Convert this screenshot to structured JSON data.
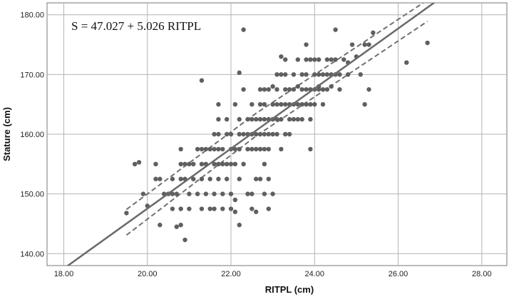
{
  "chart_data": {
    "type": "scatter",
    "title": "",
    "annotation": "S = 47.027 + 5.026 RITPL",
    "xlabel": "RITPL  (cm)",
    "ylabel": "Stature  (cm)",
    "xlim": [
      17.6,
      28.6
    ],
    "ylim": [
      138.0,
      182.0
    ],
    "x_ticks": [
      "18.00",
      "20.00",
      "22.00",
      "24.00",
      "26.00",
      "28.00"
    ],
    "y_ticks": [
      "140.00",
      "150.00",
      "160.00",
      "170.00",
      "180.00"
    ],
    "grid": true,
    "regression": {
      "intercept": 47.027,
      "slope": 5.026,
      "x_range": [
        17.6,
        26.9
      ]
    },
    "confidence_band": {
      "upper": [
        [
          19.5,
          147.4
        ],
        [
          22.6,
          163.5
        ],
        [
          26.6,
          182.0
        ]
      ],
      "lower": [
        [
          19.5,
          143.1
        ],
        [
          22.6,
          159.7
        ],
        [
          26.7,
          178.9
        ]
      ]
    },
    "points": [
      [
        19.5,
        146.8
      ],
      [
        19.7,
        155.0
      ],
      [
        19.8,
        155.3
      ],
      [
        19.9,
        150.0
      ],
      [
        20.0,
        148.0
      ],
      [
        20.2,
        155.0
      ],
      [
        20.2,
        152.5
      ],
      [
        20.3,
        152.5
      ],
      [
        20.3,
        144.8
      ],
      [
        20.4,
        150.0
      ],
      [
        20.5,
        150.0
      ],
      [
        20.6,
        152.5
      ],
      [
        20.6,
        150.0
      ],
      [
        20.6,
        147.5
      ],
      [
        20.7,
        150.0
      ],
      [
        20.7,
        144.5
      ],
      [
        20.8,
        157.5
      ],
      [
        20.8,
        155.0
      ],
      [
        20.8,
        152.5
      ],
      [
        20.8,
        147.5
      ],
      [
        20.8,
        144.8
      ],
      [
        20.9,
        155.0
      ],
      [
        20.9,
        152.5
      ],
      [
        20.9,
        142.3
      ],
      [
        21.0,
        155.0
      ],
      [
        21.0,
        150.0
      ],
      [
        21.0,
        147.5
      ],
      [
        21.1,
        155.0
      ],
      [
        21.1,
        152.5
      ],
      [
        21.2,
        157.5
      ],
      [
        21.2,
        150.0
      ],
      [
        21.3,
        157.5
      ],
      [
        21.3,
        155.0
      ],
      [
        21.3,
        152.5
      ],
      [
        21.3,
        147.5
      ],
      [
        21.3,
        169.0
      ],
      [
        21.4,
        157.5
      ],
      [
        21.4,
        155.0
      ],
      [
        21.4,
        150.0
      ],
      [
        21.5,
        157.5
      ],
      [
        21.5,
        152.5
      ],
      [
        21.5,
        147.5
      ],
      [
        21.6,
        160.0
      ],
      [
        21.6,
        157.5
      ],
      [
        21.6,
        155.0
      ],
      [
        21.6,
        150.0
      ],
      [
        21.6,
        147.5
      ],
      [
        21.7,
        160.0
      ],
      [
        21.7,
        157.5
      ],
      [
        21.7,
        155.0
      ],
      [
        21.7,
        152.5
      ],
      [
        21.7,
        165.0
      ],
      [
        21.7,
        162.5
      ],
      [
        21.8,
        157.5
      ],
      [
        21.8,
        155.0
      ],
      [
        21.8,
        150.0
      ],
      [
        21.8,
        147.5
      ],
      [
        21.9,
        160.0
      ],
      [
        21.9,
        155.0
      ],
      [
        21.9,
        152.5
      ],
      [
        21.9,
        162.5
      ],
      [
        22.0,
        157.5
      ],
      [
        22.0,
        155.0
      ],
      [
        22.0,
        150.0
      ],
      [
        22.0,
        147.5
      ],
      [
        22.0,
        160.0
      ],
      [
        22.1,
        157.5
      ],
      [
        22.1,
        155.0
      ],
      [
        22.1,
        149.0
      ],
      [
        22.1,
        147.0
      ],
      [
        22.1,
        165.0
      ],
      [
        22.2,
        162.5
      ],
      [
        22.2,
        170.3
      ],
      [
        22.2,
        160.0
      ],
      [
        22.2,
        157.5
      ],
      [
        22.2,
        152.5
      ],
      [
        22.2,
        144.8
      ],
      [
        22.3,
        167.5
      ],
      [
        22.3,
        160.0
      ],
      [
        22.3,
        177.5
      ],
      [
        22.3,
        155.0
      ],
      [
        22.4,
        162.5
      ],
      [
        22.4,
        160.0
      ],
      [
        22.4,
        157.5
      ],
      [
        22.4,
        150.0
      ],
      [
        22.5,
        165.0
      ],
      [
        22.5,
        162.5
      ],
      [
        22.5,
        160.0
      ],
      [
        22.5,
        157.5
      ],
      [
        22.5,
        150.0
      ],
      [
        22.5,
        147.5
      ],
      [
        22.6,
        162.5
      ],
      [
        22.6,
        160.0
      ],
      [
        22.6,
        157.5
      ],
      [
        22.6,
        152.5
      ],
      [
        22.6,
        147.0
      ],
      [
        22.7,
        167.5
      ],
      [
        22.7,
        165.0
      ],
      [
        22.7,
        162.5
      ],
      [
        22.7,
        160.0
      ],
      [
        22.7,
        157.5
      ],
      [
        22.7,
        152.5
      ],
      [
        22.8,
        167.5
      ],
      [
        22.8,
        165.0
      ],
      [
        22.8,
        162.5
      ],
      [
        22.8,
        160.0
      ],
      [
        22.8,
        157.5
      ],
      [
        22.8,
        155.0
      ],
      [
        22.8,
        150.0
      ],
      [
        22.9,
        167.5
      ],
      [
        22.9,
        162.5
      ],
      [
        22.9,
        160.0
      ],
      [
        22.9,
        157.5
      ],
      [
        22.9,
        152.5
      ],
      [
        22.9,
        147.5
      ],
      [
        23.0,
        168.0
      ],
      [
        23.0,
        165.0
      ],
      [
        23.0,
        162.5
      ],
      [
        23.0,
        160.0
      ],
      [
        23.0,
        150.0
      ],
      [
        23.1,
        170.0
      ],
      [
        23.1,
        167.5
      ],
      [
        23.1,
        165.0
      ],
      [
        23.1,
        162.5
      ],
      [
        23.1,
        160.0
      ],
      [
        23.2,
        173.0
      ],
      [
        23.2,
        170.0
      ],
      [
        23.2,
        165.0
      ],
      [
        23.2,
        162.5
      ],
      [
        23.2,
        157.5
      ],
      [
        23.3,
        172.5
      ],
      [
        23.3,
        170.0
      ],
      [
        23.3,
        167.5
      ],
      [
        23.3,
        165.0
      ],
      [
        23.3,
        160.0
      ],
      [
        23.4,
        167.5
      ],
      [
        23.4,
        165.0
      ],
      [
        23.4,
        162.5
      ],
      [
        23.4,
        160.0
      ],
      [
        23.5,
        170.0
      ],
      [
        23.5,
        167.5
      ],
      [
        23.5,
        165.0
      ],
      [
        23.5,
        162.5
      ],
      [
        23.6,
        172.5
      ],
      [
        23.6,
        168.0
      ],
      [
        23.6,
        165.0
      ],
      [
        23.6,
        162.5
      ],
      [
        23.7,
        170.0
      ],
      [
        23.7,
        167.5
      ],
      [
        23.7,
        165.0
      ],
      [
        23.7,
        162.5
      ],
      [
        23.8,
        175.0
      ],
      [
        23.8,
        172.5
      ],
      [
        23.8,
        170.0
      ],
      [
        23.8,
        167.5
      ],
      [
        23.8,
        165.0
      ],
      [
        23.9,
        172.5
      ],
      [
        23.9,
        167.5
      ],
      [
        23.9,
        165.0
      ],
      [
        23.9,
        162.5
      ],
      [
        23.9,
        157.5
      ],
      [
        24.0,
        172.5
      ],
      [
        24.0,
        170.0
      ],
      [
        24.0,
        167.5
      ],
      [
        24.0,
        165.0
      ],
      [
        24.1,
        172.5
      ],
      [
        24.1,
        170.0
      ],
      [
        24.1,
        168.0
      ],
      [
        24.1,
        167.5
      ],
      [
        24.2,
        170.0
      ],
      [
        24.2,
        167.5
      ],
      [
        24.2,
        165.0
      ],
      [
        24.3,
        172.5
      ],
      [
        24.3,
        170.0
      ],
      [
        24.3,
        167.5
      ],
      [
        24.4,
        172.5
      ],
      [
        24.4,
        170.0
      ],
      [
        24.4,
        168.0
      ],
      [
        24.5,
        177.5
      ],
      [
        24.5,
        172.5
      ],
      [
        24.5,
        170.0
      ],
      [
        24.6,
        170.0
      ],
      [
        24.6,
        167.5
      ],
      [
        24.7,
        172.5
      ],
      [
        24.8,
        172.0
      ],
      [
        24.8,
        170.0
      ],
      [
        24.9,
        175.0
      ],
      [
        25.0,
        173.0
      ],
      [
        25.1,
        170.0
      ],
      [
        25.2,
        175.0
      ],
      [
        25.2,
        165.0
      ],
      [
        25.3,
        175.0
      ],
      [
        25.3,
        167.5
      ],
      [
        25.4,
        177.0
      ],
      [
        26.2,
        172.0
      ],
      [
        26.7,
        175.3
      ]
    ]
  }
}
